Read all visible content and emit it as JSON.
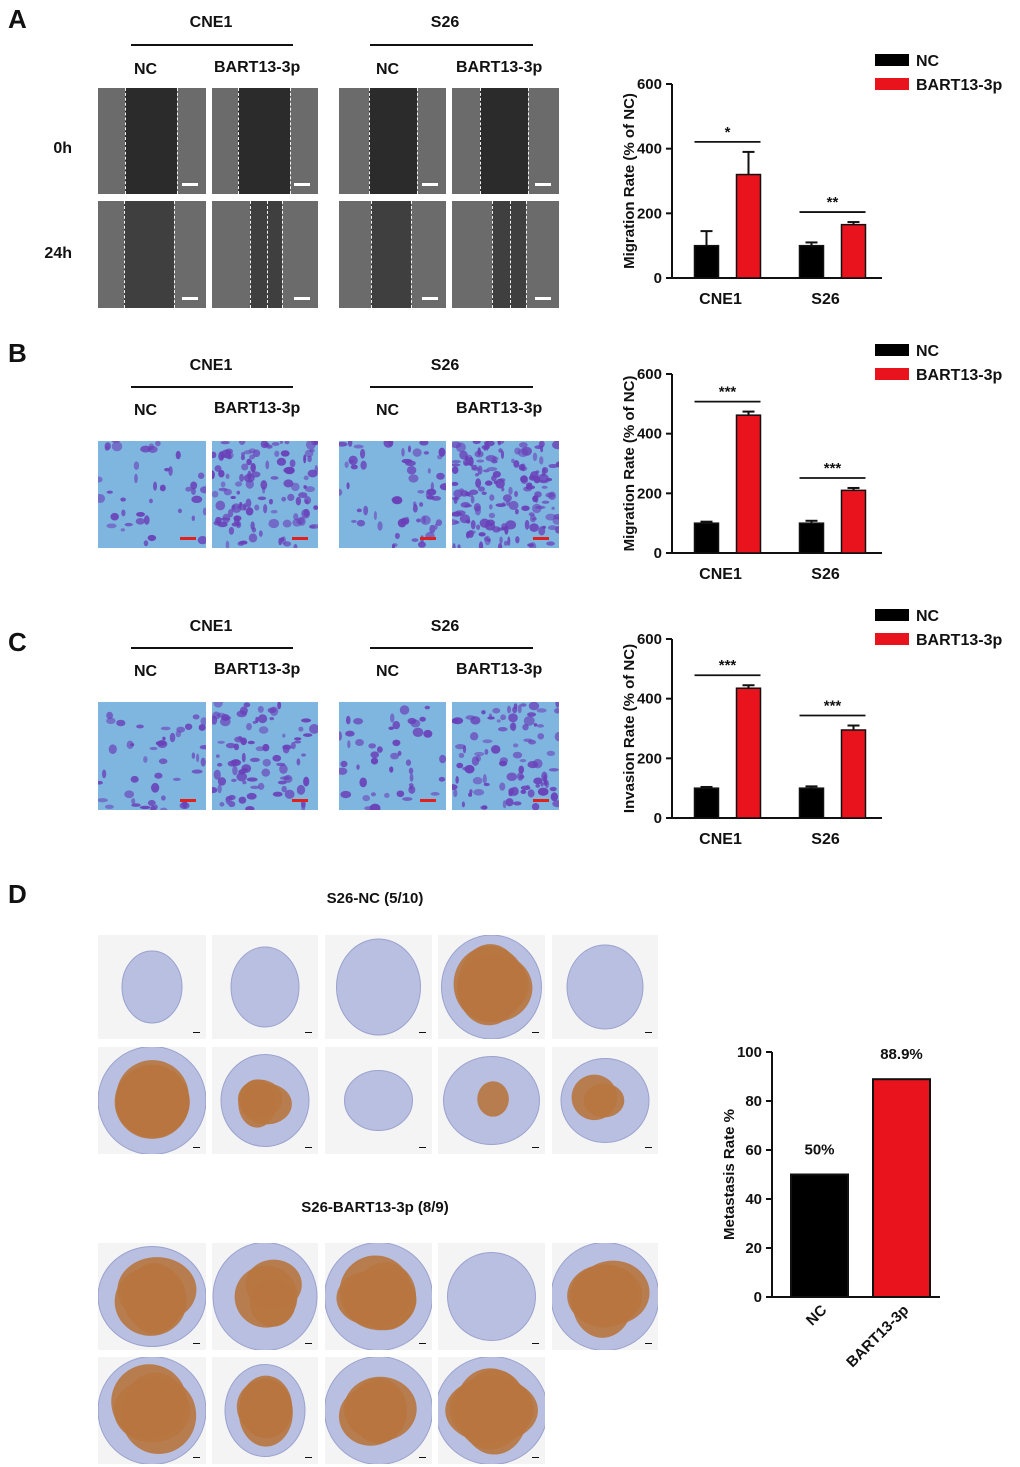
{
  "panels": {
    "A": {
      "letter": "A",
      "groups": [
        "CNE1",
        "S26"
      ],
      "conditions": [
        "NC",
        "BART13-3p",
        "NC",
        "BART13-3p"
      ],
      "rows": [
        "0h",
        "24h"
      ]
    },
    "B": {
      "letter": "B",
      "groups": [
        "CNE1",
        "S26"
      ],
      "conditions": [
        "NC",
        "BART13-3p",
        "NC",
        "BART13-3p"
      ]
    },
    "C": {
      "letter": "C",
      "groups": [
        "CNE1",
        "S26"
      ],
      "conditions": [
        "NC",
        "BART13-3p",
        "NC",
        "BART13-3p"
      ]
    },
    "D": {
      "letter": "D",
      "nc_title": "S26-NC (5/10)",
      "bart_title": "S26-BART13-3p (8/9)"
    }
  },
  "colors": {
    "nc": "#000000",
    "bart": "#e8131c",
    "scratch_bg": "#6b6b6b",
    "transwell_bg": "#7fb6df",
    "stain_purple": "#6a3fb8",
    "ihc_blue": "#b8bfe0",
    "ihc_brown": "#b8763f"
  },
  "chart_data": [
    {
      "type": "bar",
      "panel": "A",
      "ylabel": "Migration Rate (% of NC)",
      "ylim": [
        0,
        600
      ],
      "yticks": [
        0,
        200,
        400,
        600
      ],
      "categories": [
        "CNE1",
        "S26"
      ],
      "series": [
        {
          "name": "NC",
          "values": [
            100,
            100
          ],
          "errors": [
            45,
            10
          ]
        },
        {
          "name": "BART13-3p",
          "values": [
            320,
            165
          ],
          "errors": [
            70,
            8
          ]
        }
      ],
      "significance": [
        "*",
        "**"
      ],
      "legend_position": "top-right"
    },
    {
      "type": "bar",
      "panel": "B",
      "ylabel": "Migration Rate (% of NC)",
      "ylim": [
        0,
        600
      ],
      "yticks": [
        0,
        200,
        400,
        600
      ],
      "categories": [
        "CNE1",
        "S26"
      ],
      "series": [
        {
          "name": "NC",
          "values": [
            100,
            100
          ],
          "errors": [
            5,
            8
          ]
        },
        {
          "name": "BART13-3p",
          "values": [
            462,
            210
          ],
          "errors": [
            12,
            8
          ]
        }
      ],
      "significance": [
        "***",
        "***"
      ],
      "legend_position": "top-right"
    },
    {
      "type": "bar",
      "panel": "C",
      "ylabel": "Invasion Rate (% of NC)",
      "ylim": [
        0,
        600
      ],
      "yticks": [
        0,
        200,
        400,
        600
      ],
      "categories": [
        "CNE1",
        "S26"
      ],
      "series": [
        {
          "name": "NC",
          "values": [
            100,
            100
          ],
          "errors": [
            4,
            6
          ]
        },
        {
          "name": "BART13-3p",
          "values": [
            435,
            295
          ],
          "errors": [
            10,
            15
          ]
        }
      ],
      "significance": [
        "***",
        "***"
      ],
      "legend_position": "top-right"
    },
    {
      "type": "bar",
      "panel": "D",
      "ylabel": "Metastasis Rate %",
      "ylim": [
        0,
        100
      ],
      "yticks": [
        0,
        20,
        40,
        60,
        80,
        100
      ],
      "categories": [
        "NC",
        "BART13-3p"
      ],
      "values": [
        50,
        88.9
      ],
      "value_labels": [
        "50%",
        "88.9%"
      ]
    }
  ]
}
